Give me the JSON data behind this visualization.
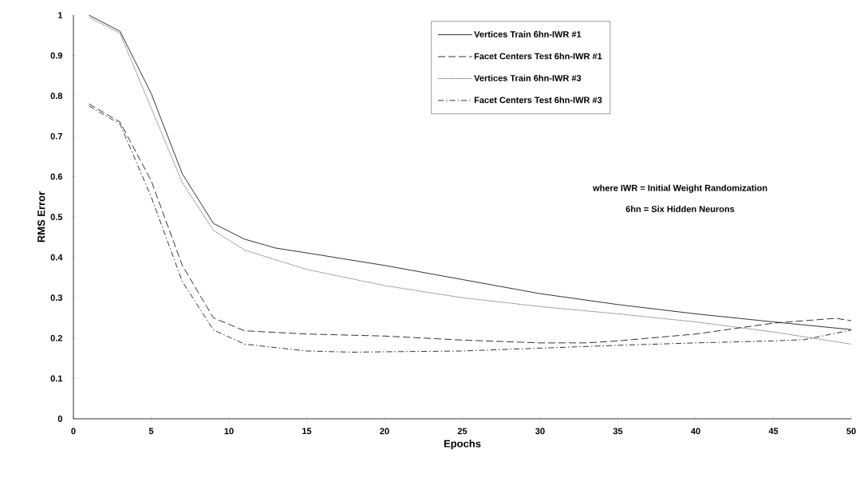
{
  "chart_data": {
    "type": "line",
    "xlabel": "Epochs",
    "ylabel": "RMS Error",
    "xlim": [
      0,
      50
    ],
    "ylim": [
      0,
      1
    ],
    "xticks": [
      0,
      5,
      10,
      15,
      20,
      25,
      30,
      35,
      40,
      45,
      50
    ],
    "yticks": [
      0,
      0.1,
      0.2,
      0.3,
      0.4,
      0.5,
      0.6,
      0.7,
      0.8,
      0.9,
      1
    ],
    "legend": "top right",
    "annotations": [
      "where IWR = Initial Weight Randomization",
      "6hn = Six Hidden Neurons"
    ],
    "series": [
      {
        "name": "Vertices Train 6hn-IWR #1",
        "color": "#000000",
        "line_style": "solid",
        "x": [
          1,
          3,
          5,
          7,
          9,
          11,
          13,
          15,
          20,
          25,
          30,
          35,
          40,
          45,
          50
        ],
        "values": [
          1.0,
          0.96,
          0.806,
          0.607,
          0.484,
          0.445,
          0.423,
          0.411,
          0.38,
          0.345,
          0.31,
          0.283,
          0.26,
          0.24,
          0.221
        ]
      },
      {
        "name": "Facet Centers Test 6hn-IWR #1",
        "color": "#000000",
        "line_style": "dashed",
        "x": [
          1,
          3,
          5,
          7,
          9,
          11,
          15,
          20,
          25,
          30,
          33,
          35,
          40,
          45,
          49,
          50
        ],
        "values": [
          0.78,
          0.735,
          0.59,
          0.38,
          0.25,
          0.218,
          0.21,
          0.205,
          0.195,
          0.188,
          0.188,
          0.193,
          0.21,
          0.237,
          0.249,
          0.243
        ]
      },
      {
        "name": "Vertices Train 6hn-IWR #3",
        "color": "#000000",
        "line_style": "dotted",
        "x": [
          1,
          3,
          5,
          7,
          9,
          11,
          15,
          20,
          25,
          30,
          35,
          40,
          45,
          50
        ],
        "values": [
          0.995,
          0.955,
          0.77,
          0.585,
          0.467,
          0.418,
          0.37,
          0.33,
          0.3,
          0.278,
          0.26,
          0.24,
          0.215,
          0.185
        ]
      },
      {
        "name": "Facet Centers Test 6hn-IWR #3",
        "color": "#000000",
        "line_style": "dashdotted",
        "x": [
          1,
          3,
          5,
          7,
          9,
          11,
          15,
          18,
          20,
          25,
          30,
          35,
          40,
          45,
          47,
          50
        ],
        "values": [
          0.775,
          0.73,
          0.55,
          0.34,
          0.22,
          0.185,
          0.168,
          0.165,
          0.166,
          0.168,
          0.175,
          0.182,
          0.188,
          0.193,
          0.196,
          0.22
        ]
      }
    ]
  }
}
